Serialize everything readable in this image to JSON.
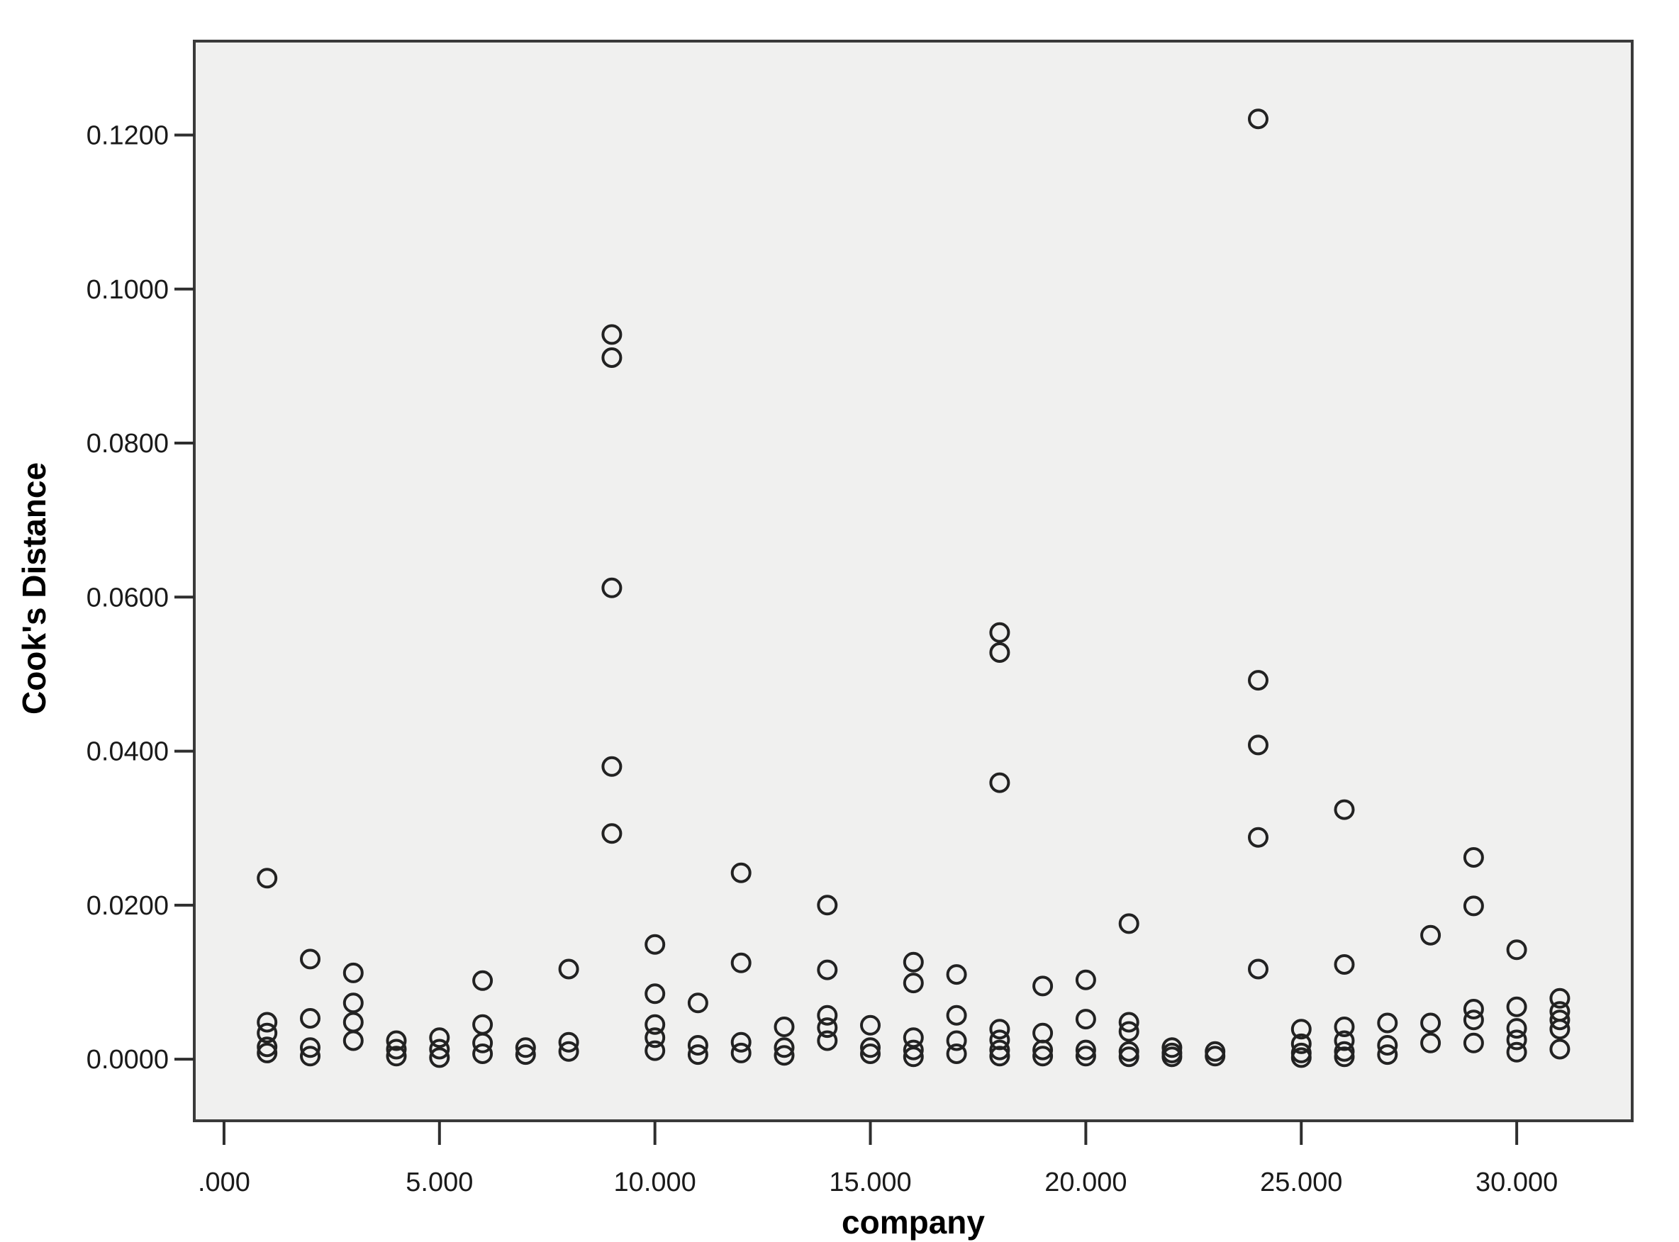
{
  "chart_data": {
    "type": "scatter",
    "title": "",
    "xlabel": "company",
    "ylabel": "Cook's Distance",
    "grid": false,
    "legend": "none",
    "marker": "open-circle",
    "xlim": [
      -0.69,
      32.68
    ],
    "ylim": [
      -0.008,
      0.1322
    ],
    "x_ticks": [
      {
        "value": 0,
        "label": ".000"
      },
      {
        "value": 5,
        "label": "5.000"
      },
      {
        "value": 10,
        "label": "10.000"
      },
      {
        "value": 15,
        "label": "15.000"
      },
      {
        "value": 20,
        "label": "20.000"
      },
      {
        "value": 25,
        "label": "25.000"
      },
      {
        "value": 30,
        "label": "30.000"
      }
    ],
    "y_ticks": [
      {
        "value": 0.0,
        "label": "0.0000"
      },
      {
        "value": 0.02,
        "label": "0.0200"
      },
      {
        "value": 0.04,
        "label": "0.0400"
      },
      {
        "value": 0.06,
        "label": "0.0600"
      },
      {
        "value": 0.08,
        "label": "0.0800"
      },
      {
        "value": 0.1,
        "label": "0.1000"
      },
      {
        "value": 0.12,
        "label": "0.1200"
      }
    ],
    "series": [
      {
        "company": 1,
        "values": [
          0.0235,
          0.0048,
          0.0034,
          0.0016,
          0.0008
        ]
      },
      {
        "company": 2,
        "values": [
          0.013,
          0.0053,
          0.0015,
          0.0004
        ]
      },
      {
        "company": 3,
        "values": [
          0.0112,
          0.0073,
          0.0048,
          0.0024
        ]
      },
      {
        "company": 4,
        "values": [
          0.0024,
          0.0013,
          0.0004
        ]
      },
      {
        "company": 5,
        "values": [
          0.0028,
          0.0013,
          0.0002
        ]
      },
      {
        "company": 6,
        "values": [
          0.0102,
          0.0045,
          0.0021,
          0.0007
        ]
      },
      {
        "company": 7,
        "values": [
          0.0015,
          0.0006
        ]
      },
      {
        "company": 8,
        "values": [
          0.0117,
          0.0022,
          0.001
        ]
      },
      {
        "company": 9,
        "values": [
          0.0941,
          0.0911,
          0.0612,
          0.038,
          0.0293
        ]
      },
      {
        "company": 10,
        "values": [
          0.0149,
          0.0085,
          0.0045,
          0.0028,
          0.0011
        ]
      },
      {
        "company": 11,
        "values": [
          0.0073,
          0.0018,
          0.0006
        ]
      },
      {
        "company": 12,
        "values": [
          0.0242,
          0.0125,
          0.0022,
          0.0008
        ]
      },
      {
        "company": 13,
        "values": [
          0.0042,
          0.0015,
          0.0005
        ]
      },
      {
        "company": 14,
        "values": [
          0.02,
          0.0116,
          0.0057,
          0.0041,
          0.0024
        ]
      },
      {
        "company": 15,
        "values": [
          0.0044,
          0.0015,
          0.0007
        ]
      },
      {
        "company": 16,
        "values": [
          0.0126,
          0.0099,
          0.0028,
          0.0012,
          0.0003
        ]
      },
      {
        "company": 17,
        "values": [
          0.011,
          0.0057,
          0.0024,
          0.0007
        ]
      },
      {
        "company": 18,
        "values": [
          0.0554,
          0.0528,
          0.0359,
          0.0039,
          0.0025,
          0.0012,
          0.0004
        ]
      },
      {
        "company": 19,
        "values": [
          0.0095,
          0.0034,
          0.0012,
          0.0004
        ]
      },
      {
        "company": 20,
        "values": [
          0.0103,
          0.0052,
          0.0012,
          0.0004
        ]
      },
      {
        "company": 21,
        "values": [
          0.0176,
          0.0048,
          0.0036,
          0.001,
          0.0003
        ]
      },
      {
        "company": 22,
        "values": [
          0.0015,
          0.0008,
          0.0003
        ]
      },
      {
        "company": 23,
        "values": [
          0.001,
          0.0004
        ]
      },
      {
        "company": 24,
        "values": [
          0.1221,
          0.0492,
          0.0408,
          0.0288,
          0.0117
        ]
      },
      {
        "company": 25,
        "values": [
          0.0039,
          0.002,
          0.0008,
          0.0002
        ]
      },
      {
        "company": 26,
        "values": [
          0.0324,
          0.0123,
          0.0042,
          0.0024,
          0.001,
          0.0003
        ]
      },
      {
        "company": 27,
        "values": [
          0.0047,
          0.0018,
          0.0006
        ]
      },
      {
        "company": 28,
        "values": [
          0.0161,
          0.0047,
          0.0021
        ]
      },
      {
        "company": 29,
        "values": [
          0.0262,
          0.0199,
          0.0065,
          0.0051,
          0.0021
        ]
      },
      {
        "company": 30,
        "values": [
          0.0142,
          0.0068,
          0.004,
          0.0025,
          0.0009
        ]
      },
      {
        "company": 31,
        "values": [
          0.0079,
          0.0062,
          0.0051,
          0.0039,
          0.0013
        ]
      }
    ],
    "colors": {
      "page_bg": "#ffffff",
      "plot_bg": "#f0f0ef",
      "frame": "#3a3a3a",
      "marker": "#222222",
      "text": "#1a1a1a"
    }
  }
}
